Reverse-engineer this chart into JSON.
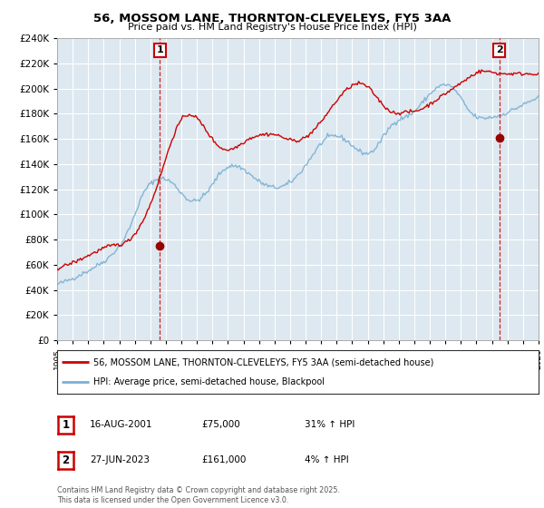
{
  "title": "56, MOSSOM LANE, THORNTON-CLEVELEYS, FY5 3AA",
  "subtitle": "Price paid vs. HM Land Registry's House Price Index (HPI)",
  "legend_line1": "56, MOSSOM LANE, THORNTON-CLEVELEYS, FY5 3AA (semi-detached house)",
  "legend_line2": "HPI: Average price, semi-detached house, Blackpool",
  "annotation1_date": "16-AUG-2001",
  "annotation1_price": "£75,000",
  "annotation1_hpi": "31% ↑ HPI",
  "annotation2_date": "27-JUN-2023",
  "annotation2_price": "£161,000",
  "annotation2_hpi": "4% ↑ HPI",
  "footer": "Contains HM Land Registry data © Crown copyright and database right 2025.\nThis data is licensed under the Open Government Licence v3.0.",
  "sale1_x": 2001.62,
  "sale1_y": 75000,
  "sale2_x": 2023.48,
  "sale2_y": 161000,
  "line_color_red": "#cc0000",
  "line_color_blue": "#7aafd4",
  "dot_color_red": "#990000",
  "annotation_line_color": "#cc0000",
  "background_color": "#ffffff",
  "plot_bg_color": "#dde8f0",
  "grid_color": "#ffffff",
  "ylim": [
    0,
    240000
  ],
  "xlim_start": 1995.0,
  "xlim_end": 2026.0,
  "hpi_data": [
    44500,
    44800,
    45200,
    45600,
    46000,
    46300,
    46700,
    47100,
    47500,
    47900,
    48300,
    48700,
    49100,
    49600,
    50100,
    50600,
    51100,
    51700,
    52200,
    52700,
    53200,
    53700,
    54200,
    54700,
    55300,
    55900,
    56500,
    57100,
    57700,
    58300,
    58900,
    59500,
    60100,
    60700,
    61300,
    61900,
    62600,
    63300,
    64100,
    65000,
    66000,
    67000,
    68000,
    69000,
    70100,
    71200,
    72300,
    73400,
    74600,
    76000,
    77500,
    79200,
    81000,
    83000,
    85000,
    87200,
    89500,
    91900,
    94400,
    97000,
    99700,
    102500,
    105300,
    108000,
    110600,
    113000,
    115200,
    117200,
    119000,
    120600,
    122000,
    123200,
    124300,
    125200,
    126000,
    126700,
    127200,
    127600,
    127900,
    128200,
    128400,
    128500,
    128400,
    128200,
    127900,
    127500,
    127000,
    126400,
    125700,
    124900,
    124000,
    123000,
    121900,
    120700,
    119500,
    118200,
    117000,
    115800,
    114700,
    113700,
    112800,
    112000,
    111400,
    111000,
    110700,
    110600,
    110600,
    110800,
    111100,
    111600,
    112200,
    112900,
    113700,
    114600,
    115600,
    116700,
    117900,
    119200,
    120600,
    122100,
    123700,
    125300,
    126900,
    128500,
    130000,
    131400,
    132700,
    133900,
    134900,
    135800,
    136500,
    137100,
    137600,
    138000,
    138300,
    138500,
    138600,
    138600,
    138500,
    138300,
    138000,
    137600,
    137100,
    136500,
    135800,
    135100,
    134300,
    133500,
    132700,
    131800,
    131000,
    130100,
    129300,
    128500,
    127700,
    127000,
    126300,
    125600,
    125000,
    124400,
    123900,
    123400,
    123000,
    122600,
    122200,
    121900,
    121700,
    121500,
    121400,
    121400,
    121400,
    121500,
    121700,
    121900,
    122200,
    122600,
    123000,
    123500,
    124100,
    124700,
    125400,
    126200,
    127100,
    128000,
    129000,
    130100,
    131200,
    132400,
    133600,
    134900,
    136200,
    137600,
    139000,
    140500,
    142000,
    143500,
    145000,
    146500,
    148000,
    149500,
    151000,
    152500,
    153900,
    155200,
    156400,
    157500,
    158500,
    159400,
    160200,
    160900,
    161400,
    161800,
    162100,
    162300,
    162400,
    162400,
    162300,
    162100,
    161800,
    161400,
    160900,
    160300,
    159700,
    159000,
    158200,
    157400,
    156500,
    155600,
    154700,
    153800,
    152900,
    152100,
    151300,
    150600,
    150000,
    149500,
    149100,
    148700,
    148500,
    148400,
    148400,
    148600,
    149000,
    149600,
    150400,
    151400,
    152600,
    153900,
    155300,
    156800,
    158400,
    160000,
    161600,
    163200,
    164700,
    166200,
    167600,
    168900,
    170100,
    171200,
    172200,
    173100,
    173900,
    174600,
    175200,
    175700,
    176200,
    176600,
    177000,
    177400,
    177800,
    178200,
    178700,
    179300,
    180000,
    180800,
    181700,
    182700,
    183800,
    184900,
    186100,
    187300,
    188500,
    189700,
    190900,
    192100,
    193300,
    194400,
    195500,
    196600,
    197600,
    198500,
    199400,
    200200,
    200900,
    201500,
    202000,
    202400,
    202700,
    202900,
    203000,
    202900,
    202700,
    202300,
    201800,
    201100,
    200200,
    199200,
    198000,
    196700,
    195300,
    193800,
    192200,
    190500,
    188800,
    187200,
    185600,
    184100,
    182700,
    181500,
    180400,
    179400,
    178600,
    177900,
    177400,
    177000,
    176700,
    176500,
    176400,
    176400,
    176400,
    176500,
    176600,
    176800,
    176900,
    177100,
    177200,
    177400,
    177600,
    177800,
    178000,
    178300,
    178600,
    178900,
    179300,
    179700,
    180100,
    180600,
    181000,
    181500,
    182000,
    182500,
    183000,
    183500,
    184000,
    184500,
    185000,
    185500,
    186000,
    186500,
    187000,
    187500,
    188000,
    188500,
    189000,
    189500,
    190000,
    190500,
    191000,
    191500,
    192000,
    192500,
    193000,
    193500,
    194000,
    194500,
    195000,
    195500,
    196000,
    196500,
    197000
  ],
  "red_data": [
    57000,
    57300,
    57700,
    58100,
    58500,
    58900,
    59300,
    59700,
    60100,
    60500,
    60900,
    61300,
    61700,
    62100,
    62500,
    62900,
    63300,
    63800,
    64300,
    64800,
    65300,
    65800,
    66300,
    66800,
    67300,
    67800,
    68300,
    68800,
    69300,
    69800,
    70300,
    70800,
    71300,
    71800,
    72300,
    72800,
    73200,
    73600,
    74000,
    74300,
    74600,
    74900,
    75200,
    75400,
    75600,
    75700,
    75800,
    75900,
    76000,
    76200,
    76500,
    76900,
    77400,
    77900,
    78500,
    79200,
    80000,
    81000,
    82100,
    83300,
    84600,
    86000,
    87500,
    89100,
    90800,
    92600,
    94500,
    96500,
    98600,
    100800,
    103100,
    105500,
    108000,
    110600,
    113300,
    116100,
    119000,
    122000,
    125100,
    128200,
    131400,
    134600,
    137900,
    141100,
    144400,
    147600,
    150800,
    153900,
    156900,
    159800,
    162500,
    165100,
    167500,
    169700,
    171700,
    173500,
    175000,
    176300,
    177300,
    178100,
    178700,
    179100,
    179300,
    179300,
    179100,
    178700,
    178100,
    177300,
    176400,
    175300,
    174100,
    172800,
    171400,
    170000,
    168500,
    167000,
    165500,
    164000,
    162500,
    161100,
    159700,
    158400,
    157200,
    156100,
    155100,
    154200,
    153400,
    152700,
    152100,
    151700,
    151400,
    151300,
    151300,
    151400,
    151600,
    151900,
    152300,
    152800,
    153300,
    153900,
    154500,
    155200,
    155900,
    156600,
    157300,
    158000,
    158700,
    159300,
    159900,
    160400,
    160900,
    161300,
    161700,
    162000,
    162300,
    162600,
    162800,
    163000,
    163200,
    163400,
    163500,
    163600,
    163700,
    163800,
    163800,
    163800,
    163700,
    163600,
    163400,
    163200,
    162900,
    162600,
    162200,
    161800,
    161400,
    161000,
    160500,
    160100,
    159700,
    159400,
    159100,
    158900,
    158800,
    158700,
    158700,
    158800,
    158900,
    159100,
    159400,
    159800,
    160200,
    160700,
    161300,
    162000,
    162800,
    163600,
    164500,
    165500,
    166500,
    167600,
    168700,
    169900,
    171100,
    172400,
    173700,
    175000,
    176400,
    177800,
    179200,
    180600,
    182000,
    183400,
    184800,
    186200,
    187600,
    188900,
    190200,
    191500,
    192800,
    194000,
    195200,
    196300,
    197400,
    198400,
    199300,
    200200,
    201000,
    201700,
    202300,
    202800,
    203200,
    203600,
    203800,
    203900,
    203900,
    203800,
    203500,
    203100,
    202500,
    201800,
    201000,
    200100,
    199100,
    198000,
    196800,
    195600,
    194300,
    193000,
    191700,
    190400,
    189100,
    187900,
    186800,
    185700,
    184700,
    183800,
    183000,
    182300,
    181700,
    181200,
    180900,
    180600,
    180500,
    180500,
    180600,
    180700,
    180800,
    180900,
    181000,
    181100,
    181200,
    181300,
    181400,
    181500,
    181600,
    181700,
    181900,
    182100,
    182400,
    182700,
    183100,
    183500,
    184000,
    184500,
    185100,
    185700,
    186300,
    186900,
    187600,
    188200,
    188900,
    189600,
    190300,
    191000,
    191700,
    192400,
    193100,
    193800,
    194500,
    195200,
    195900,
    196600,
    197300,
    198000,
    198700,
    199400,
    200100,
    200800,
    201500,
    202200,
    202900,
    203600,
    204300,
    205000,
    205700,
    206400,
    207100,
    207800,
    208500,
    209200,
    209900,
    210600,
    211300,
    212000,
    212500,
    213000,
    213300,
    213500,
    213600,
    213700,
    213700,
    213700,
    213600,
    213500,
    213300,
    213100,
    212900,
    212700,
    212500,
    212300,
    212100,
    212000,
    211900,
    211800,
    211800,
    211700,
    211700,
    211700,
    211700,
    211700,
    211700,
    211700,
    211700,
    211700,
    211700,
    211700,
    211700,
    211700,
    211700,
    211700,
    211700,
    211700,
    211700,
    211700,
    211700,
    211700,
    211700,
    211700,
    211700,
    211700,
    211700,
    211700,
    211700,
    211700,
    211700,
    211700,
    211700,
    211700,
    211700,
    211700,
    211700
  ]
}
